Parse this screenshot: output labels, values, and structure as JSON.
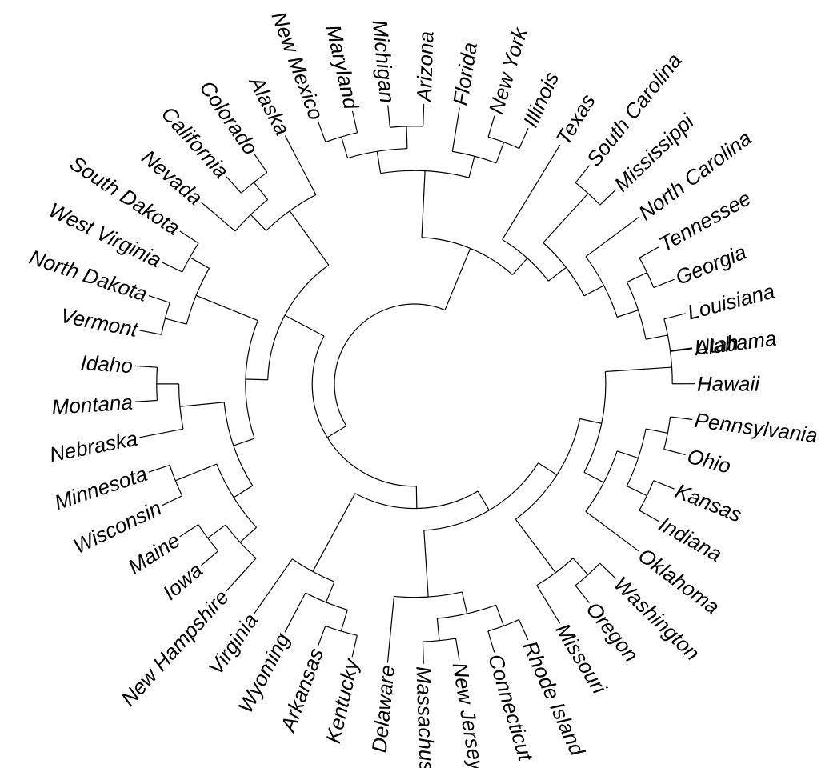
{
  "figure": {
    "type": "circular-dendrogram",
    "line_color": "#000000",
    "background": "#ffffff"
  },
  "leaves": [
    "Utah",
    "Hawaii",
    "Pennsylvania",
    "Ohio",
    "Kansas",
    "Indiana",
    "Oklahoma",
    "Washington",
    "Oregon",
    "Missouri",
    "Rhode Island",
    "Connecticut",
    "New Jersey",
    "Massachusetts",
    "Delaware",
    "Kentucky",
    "Arkansas",
    "Wyoming",
    "Virginia",
    "New Hampshire",
    "Iowa",
    "Maine",
    "Wisconsin",
    "Minnesota",
    "Nebraska",
    "Montana",
    "Idaho",
    "Vermont",
    "North Dakota",
    "West Virginia",
    "South Dakota",
    "Nevada",
    "California",
    "Colorado",
    "Alaska",
    "New Mexico",
    "Maryland",
    "Michigan",
    "Arizona",
    "Florida",
    "New York",
    "Illinois",
    "Texas",
    "South Carolina",
    "Mississippi",
    "North Carolina",
    "Tennessee",
    "Georgia",
    "Louisiana",
    "Alabama"
  ],
  "tree": [
    [
      [
        [
          [
            [
              [
                0,
                1
              ],
              [
                [
                  [
                    2,
                    3
                  ],
                  [
                    4,
                    5
                  ]
                ],
                6
              ]
            ],
            [
              [
                7,
                8
              ],
              9
            ]
          ],
          [
            [
              [
                10,
                11
              ],
              [
                12,
                13
              ]
            ],
            14
          ]
        ],
        [
          [
            [
              15,
              16
            ],
            17
          ],
          18
        ]
      ],
      [
        [
          [
            [
              [
                19,
                [
                  20,
                  21
                ]
              ],
              [
                22,
                23
              ]
            ],
            [
              24,
              [
                25,
                26
              ]
            ]
          ],
          [
            [
              27,
              28
            ],
            [
              29,
              30
            ]
          ]
        ],
        [
          [
            31,
            [
              32,
              33
            ]
          ],
          34
        ]
      ]
    ],
    [
      [
        [
          [
            35,
            36
          ],
          [
            37,
            38
          ]
        ],
        [
          39,
          [
            40,
            41
          ]
        ]
      ],
      [
        42,
        [
          [
            43,
            44
          ],
          [
            45,
            [
              [
                46,
                47
              ],
              [
                48,
                49
              ]
            ]
          ]
        ]
      ]
    ]
  ]
}
